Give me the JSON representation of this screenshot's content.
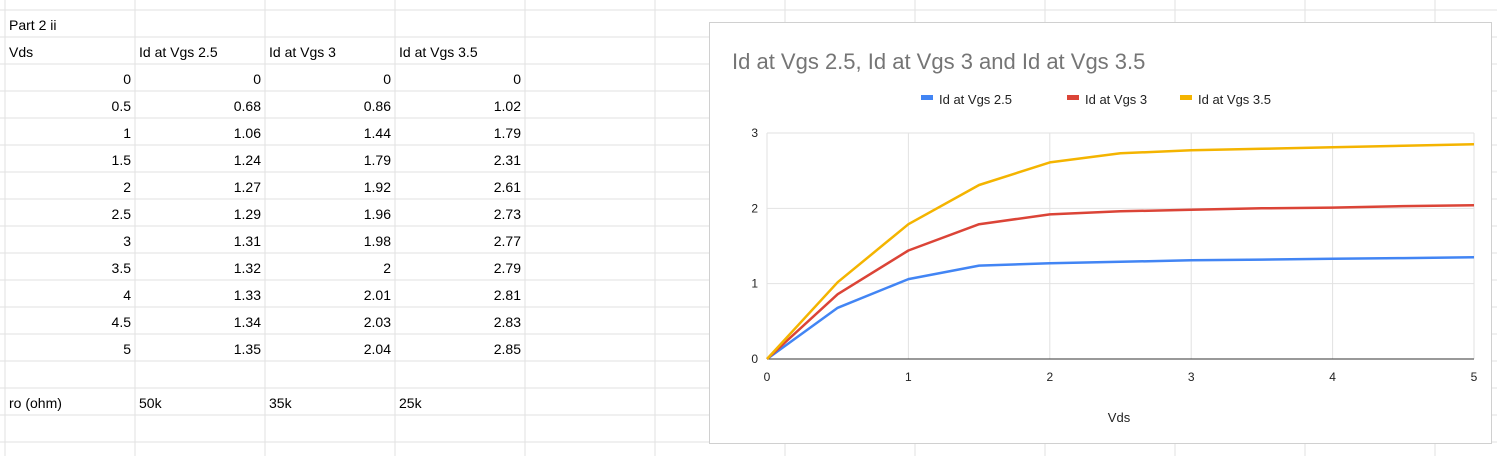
{
  "sheet": {
    "title_cell": "Part 2 ii",
    "headers": [
      "Vds",
      "Id at Vgs 2.5",
      "Id at Vgs 3",
      "Id at Vgs 3.5"
    ],
    "rows": [
      [
        "0",
        "0",
        "0",
        "0"
      ],
      [
        "0.5",
        "0.68",
        "0.86",
        "1.02"
      ],
      [
        "1",
        "1.06",
        "1.44",
        "1.79"
      ],
      [
        "1.5",
        "1.24",
        "1.79",
        "2.31"
      ],
      [
        "2",
        "1.27",
        "1.92",
        "2.61"
      ],
      [
        "2.5",
        "1.29",
        "1.96",
        "2.73"
      ],
      [
        "3",
        "1.31",
        "1.98",
        "2.77"
      ],
      [
        "3.5",
        "1.32",
        "2",
        "2.79"
      ],
      [
        "4",
        "1.33",
        "2.01",
        "2.81"
      ],
      [
        "4.5",
        "1.34",
        "2.03",
        "2.83"
      ],
      [
        "5",
        "1.35",
        "2.04",
        "2.85"
      ]
    ],
    "ro_label": "ro (ohm)",
    "ro_values": [
      "50k",
      "35k",
      "25k"
    ]
  },
  "colors": {
    "series_blue": "#4285f4",
    "series_red": "#db4437",
    "series_yellow": "#f4b400",
    "gridline": "#e2e2e2",
    "title": "#757575"
  },
  "chart_data": {
    "type": "line",
    "title": "Id at Vgs 2.5, Id at Vgs 3 and Id at Vgs 3.5",
    "xlabel": "Vds",
    "ylabel": "",
    "x": [
      0,
      0.5,
      1,
      1.5,
      2,
      2.5,
      3,
      3.5,
      4,
      4.5,
      5
    ],
    "xlim": [
      0,
      5
    ],
    "ylim": [
      0,
      3
    ],
    "xticks": [
      "0",
      "1",
      "2",
      "3",
      "4",
      "5"
    ],
    "yticks": [
      "0",
      "1",
      "2",
      "3"
    ],
    "grid": true,
    "legend_position": "top",
    "series": [
      {
        "name": "Id at Vgs 2.5",
        "values": [
          0,
          0.68,
          1.06,
          1.24,
          1.27,
          1.29,
          1.31,
          1.32,
          1.33,
          1.34,
          1.35
        ]
      },
      {
        "name": "Id at Vgs 3",
        "values": [
          0,
          0.86,
          1.44,
          1.79,
          1.92,
          1.96,
          1.98,
          2,
          2.01,
          2.03,
          2.04
        ]
      },
      {
        "name": "Id at Vgs 3.5",
        "values": [
          0,
          1.02,
          1.79,
          2.31,
          2.61,
          2.73,
          2.77,
          2.79,
          2.81,
          2.83,
          2.85
        ]
      }
    ]
  }
}
